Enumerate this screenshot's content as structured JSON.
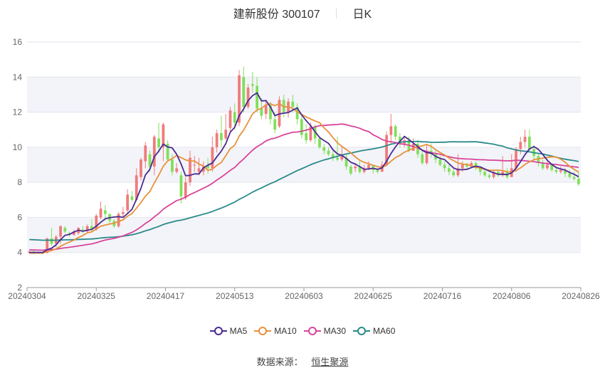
{
  "title": {
    "stock_name": "建新股份",
    "stock_code": "300107",
    "period": "日K"
  },
  "legend": [
    {
      "name": "MA5",
      "color": "#4b2a91"
    },
    {
      "name": "MA10",
      "color": "#e8913a"
    },
    {
      "name": "MA30",
      "color": "#d9449a"
    },
    {
      "name": "MA60",
      "color": "#2b8a8a"
    }
  ],
  "source": {
    "label": "数据来源：",
    "name": "恒生聚源"
  },
  "colors": {
    "up": "#f07b7b",
    "down": "#7fe05a",
    "band": "#f3f4f9",
    "grid": "#e3e5ee",
    "axis": "#999999"
  },
  "chart_data": {
    "type": "candlestick",
    "title": "建新股份 300107 日K",
    "xlabel": "",
    "ylabel": "",
    "ylim": [
      2,
      16
    ],
    "yticks": [
      2,
      4,
      6,
      8,
      10,
      12,
      14,
      16
    ],
    "xtick_labels": [
      "20240304",
      "20240325",
      "20240417",
      "20240513",
      "20240603",
      "20240625",
      "20240716",
      "20240806",
      "20240826"
    ],
    "grid": true,
    "legend_position": "bottom",
    "ohlc": [
      [
        4.0,
        4.05,
        3.92,
        4.1
      ],
      [
        4.05,
        3.98,
        3.9,
        4.1
      ],
      [
        3.98,
        4.0,
        3.92,
        4.05
      ],
      [
        4.0,
        3.97,
        3.9,
        4.05
      ],
      [
        3.97,
        4.8,
        3.95,
        4.85
      ],
      [
        4.8,
        4.5,
        4.4,
        5.4
      ],
      [
        4.5,
        4.9,
        4.3,
        5.0
      ],
      [
        4.9,
        5.5,
        4.5,
        5.55
      ],
      [
        5.4,
        5.2,
        5.1,
        5.5
      ],
      [
        5.1,
        5.05,
        4.9,
        5.2
      ],
      [
        5.0,
        5.2,
        4.95,
        5.3
      ],
      [
        5.1,
        5.4,
        5.0,
        5.45
      ],
      [
        5.3,
        5.2,
        5.1,
        5.5
      ],
      [
        5.2,
        5.5,
        5.15,
        5.6
      ],
      [
        5.5,
        5.3,
        5.2,
        5.9
      ],
      [
        5.3,
        6.1,
        5.25,
        6.2
      ],
      [
        6.0,
        6.5,
        5.9,
        6.9
      ],
      [
        6.4,
        6.2,
        5.8,
        6.7
      ],
      [
        6.2,
        5.8,
        5.6,
        6.0
      ],
      [
        5.8,
        5.5,
        5.4,
        5.9
      ],
      [
        5.5,
        6.2,
        5.4,
        6.3
      ],
      [
        6.2,
        6.3,
        6.0,
        6.6
      ],
      [
        6.4,
        7.3,
        6.2,
        7.6
      ],
      [
        7.2,
        7.0,
        6.9,
        7.5
      ],
      [
        7.0,
        8.4,
        6.9,
        8.8
      ],
      [
        8.3,
        9.3,
        8.1,
        9.4
      ],
      [
        9.2,
        10.1,
        8.8,
        10.3
      ],
      [
        9.6,
        8.9,
        8.6,
        9.8
      ],
      [
        8.9,
        10.6,
        8.4,
        10.7
      ],
      [
        10.5,
        10.0,
        9.7,
        11.4
      ],
      [
        10.0,
        11.3,
        9.2,
        11.4
      ],
      [
        10.2,
        9.3,
        9.2,
        10.4
      ],
      [
        9.3,
        8.6,
        8.4,
        9.6
      ],
      [
        8.6,
        8.8,
        8.5,
        9.1
      ],
      [
        8.4,
        7.2,
        6.8,
        8.6
      ],
      [
        7.1,
        8.0,
        7.0,
        8.3
      ],
      [
        8.0,
        9.4,
        7.8,
        9.8
      ],
      [
        9.0,
        9.0,
        8.6,
        9.5
      ],
      [
        8.6,
        8.8,
        8.4,
        9.4
      ],
      [
        8.6,
        8.9,
        8.4,
        9.2
      ],
      [
        9.0,
        8.8,
        8.5,
        9.4
      ],
      [
        8.8,
        10.0,
        8.6,
        10.6
      ],
      [
        10.0,
        10.8,
        9.7,
        11.0
      ],
      [
        10.8,
        10.4,
        10.0,
        11.8
      ],
      [
        10.5,
        11.0,
        10.4,
        11.9
      ],
      [
        11.1,
        12.1,
        10.8,
        12.3
      ],
      [
        12.0,
        11.4,
        11.0,
        12.5
      ],
      [
        11.4,
        14.1,
        11.2,
        14.4
      ],
      [
        14.0,
        12.3,
        12.0,
        14.6
      ],
      [
        12.3,
        13.4,
        12.2,
        13.6
      ],
      [
        13.6,
        13.5,
        13.1,
        14.3
      ],
      [
        13.5,
        12.2,
        12.0,
        14.0
      ],
      [
        12.2,
        11.8,
        11.6,
        12.8
      ],
      [
        11.9,
        12.4,
        11.6,
        12.6
      ],
      [
        12.4,
        11.6,
        11.3,
        12.6
      ],
      [
        11.6,
        11.0,
        10.8,
        12.0
      ],
      [
        11.2,
        12.7,
        11.1,
        12.9
      ],
      [
        12.7,
        12.0,
        11.7,
        13.0
      ],
      [
        12.0,
        12.6,
        11.7,
        12.8
      ],
      [
        12.6,
        12.3,
        12.0,
        13.0
      ],
      [
        12.3,
        11.6,
        11.3,
        12.5
      ],
      [
        11.6,
        10.7,
        10.5,
        11.8
      ],
      [
        10.8,
        10.4,
        10.2,
        11.3
      ],
      [
        10.4,
        11.2,
        10.3,
        11.4
      ],
      [
        11.2,
        10.5,
        10.2,
        11.3
      ],
      [
        10.5,
        10.0,
        9.9,
        10.6
      ],
      [
        10.0,
        9.8,
        9.6,
        10.2
      ],
      [
        9.8,
        9.6,
        9.5,
        10.0
      ],
      [
        9.6,
        9.4,
        9.2,
        9.8
      ],
      [
        9.4,
        9.3,
        9.2,
        10.6
      ],
      [
        9.3,
        9.6,
        9.2,
        10.1
      ],
      [
        9.4,
        8.9,
        8.7,
        9.6
      ],
      [
        8.9,
        8.5,
        8.4,
        9.0
      ],
      [
        8.8,
        8.9,
        8.6,
        9.1
      ],
      [
        8.9,
        8.6,
        8.5,
        9.2
      ],
      [
        8.6,
        8.8,
        8.5,
        9.0
      ],
      [
        8.8,
        9.0,
        8.7,
        9.2
      ],
      [
        9.0,
        8.7,
        8.5,
        9.0
      ],
      [
        8.7,
        8.6,
        8.5,
        8.8
      ],
      [
        8.6,
        9.0,
        8.6,
        9.2
      ],
      [
        9.0,
        10.7,
        8.9,
        10.9
      ],
      [
        10.7,
        11.2,
        10.2,
        11.9
      ],
      [
        11.2,
        10.6,
        10.4,
        11.3
      ],
      [
        10.6,
        10.2,
        10.0,
        10.8
      ],
      [
        10.2,
        10.4,
        10.0,
        10.6
      ],
      [
        10.4,
        9.8,
        9.7,
        10.6
      ],
      [
        9.8,
        10.2,
        9.8,
        10.5
      ],
      [
        10.2,
        9.6,
        9.4,
        10.4
      ],
      [
        9.6,
        9.1,
        9.0,
        9.8
      ],
      [
        9.1,
        9.8,
        9.0,
        10.2
      ],
      [
        9.8,
        9.6,
        9.4,
        10.2
      ],
      [
        9.6,
        9.3,
        9.1,
        9.8
      ],
      [
        9.3,
        9.0,
        8.9,
        9.5
      ],
      [
        9.0,
        8.8,
        8.6,
        9.2
      ],
      [
        8.8,
        8.6,
        8.4,
        9.0
      ],
      [
        8.6,
        8.4,
        8.3,
        8.8
      ],
      [
        8.4,
        8.8,
        8.3,
        9.6
      ],
      [
        8.8,
        9.0,
        8.6,
        9.2
      ],
      [
        9.0,
        8.9,
        8.7,
        9.1
      ],
      [
        8.9,
        9.1,
        8.8,
        9.2
      ],
      [
        9.1,
        8.8,
        8.7,
        9.2
      ],
      [
        8.8,
        8.6,
        8.4,
        8.9
      ],
      [
        8.6,
        8.4,
        8.3,
        8.7
      ],
      [
        8.4,
        8.3,
        8.2,
        8.5
      ],
      [
        8.3,
        8.6,
        8.2,
        8.7
      ],
      [
        8.6,
        8.4,
        8.3,
        8.7
      ],
      [
        8.4,
        8.6,
        8.3,
        9.5
      ],
      [
        8.6,
        8.3,
        8.2,
        8.8
      ],
      [
        8.3,
        8.8,
        8.3,
        9.6
      ],
      [
        8.8,
        9.9,
        8.6,
        10.0
      ],
      [
        9.9,
        10.3,
        9.6,
        10.6
      ],
      [
        10.3,
        10.6,
        10.0,
        11.0
      ],
      [
        10.6,
        9.9,
        9.8,
        11.0
      ],
      [
        9.9,
        9.5,
        9.3,
        10.1
      ],
      [
        9.5,
        9.1,
        8.9,
        9.6
      ],
      [
        9.1,
        8.8,
        8.7,
        9.3
      ],
      [
        8.8,
        9.0,
        8.7,
        9.2
      ],
      [
        9.0,
        8.7,
        8.6,
        9.1
      ],
      [
        8.7,
        8.6,
        8.5,
        8.9
      ],
      [
        8.6,
        8.7,
        8.5,
        8.9
      ],
      [
        8.7,
        8.5,
        8.3,
        8.8
      ],
      [
        8.5,
        8.3,
        8.2,
        8.7
      ],
      [
        8.3,
        8.2,
        8.1,
        8.6
      ],
      [
        8.2,
        7.9,
        7.8,
        8.6
      ]
    ],
    "series": [
      {
        "name": "MA5",
        "start": 4.0,
        "end": 8.3,
        "peak": 13.4,
        "peak_date_approx": "20240510"
      },
      {
        "name": "MA10",
        "start": 4.0,
        "end": 8.5,
        "peak": 13.0,
        "peak_date_approx": "20240515"
      },
      {
        "name": "MA30",
        "start": 4.1,
        "end": 8.9,
        "peak": 11.3,
        "peak_date_approx": "20240607"
      },
      {
        "name": "MA60",
        "start": 4.65,
        "end": 9.2,
        "peak": 10.4,
        "peak_date_approx": "20240708"
      }
    ]
  }
}
